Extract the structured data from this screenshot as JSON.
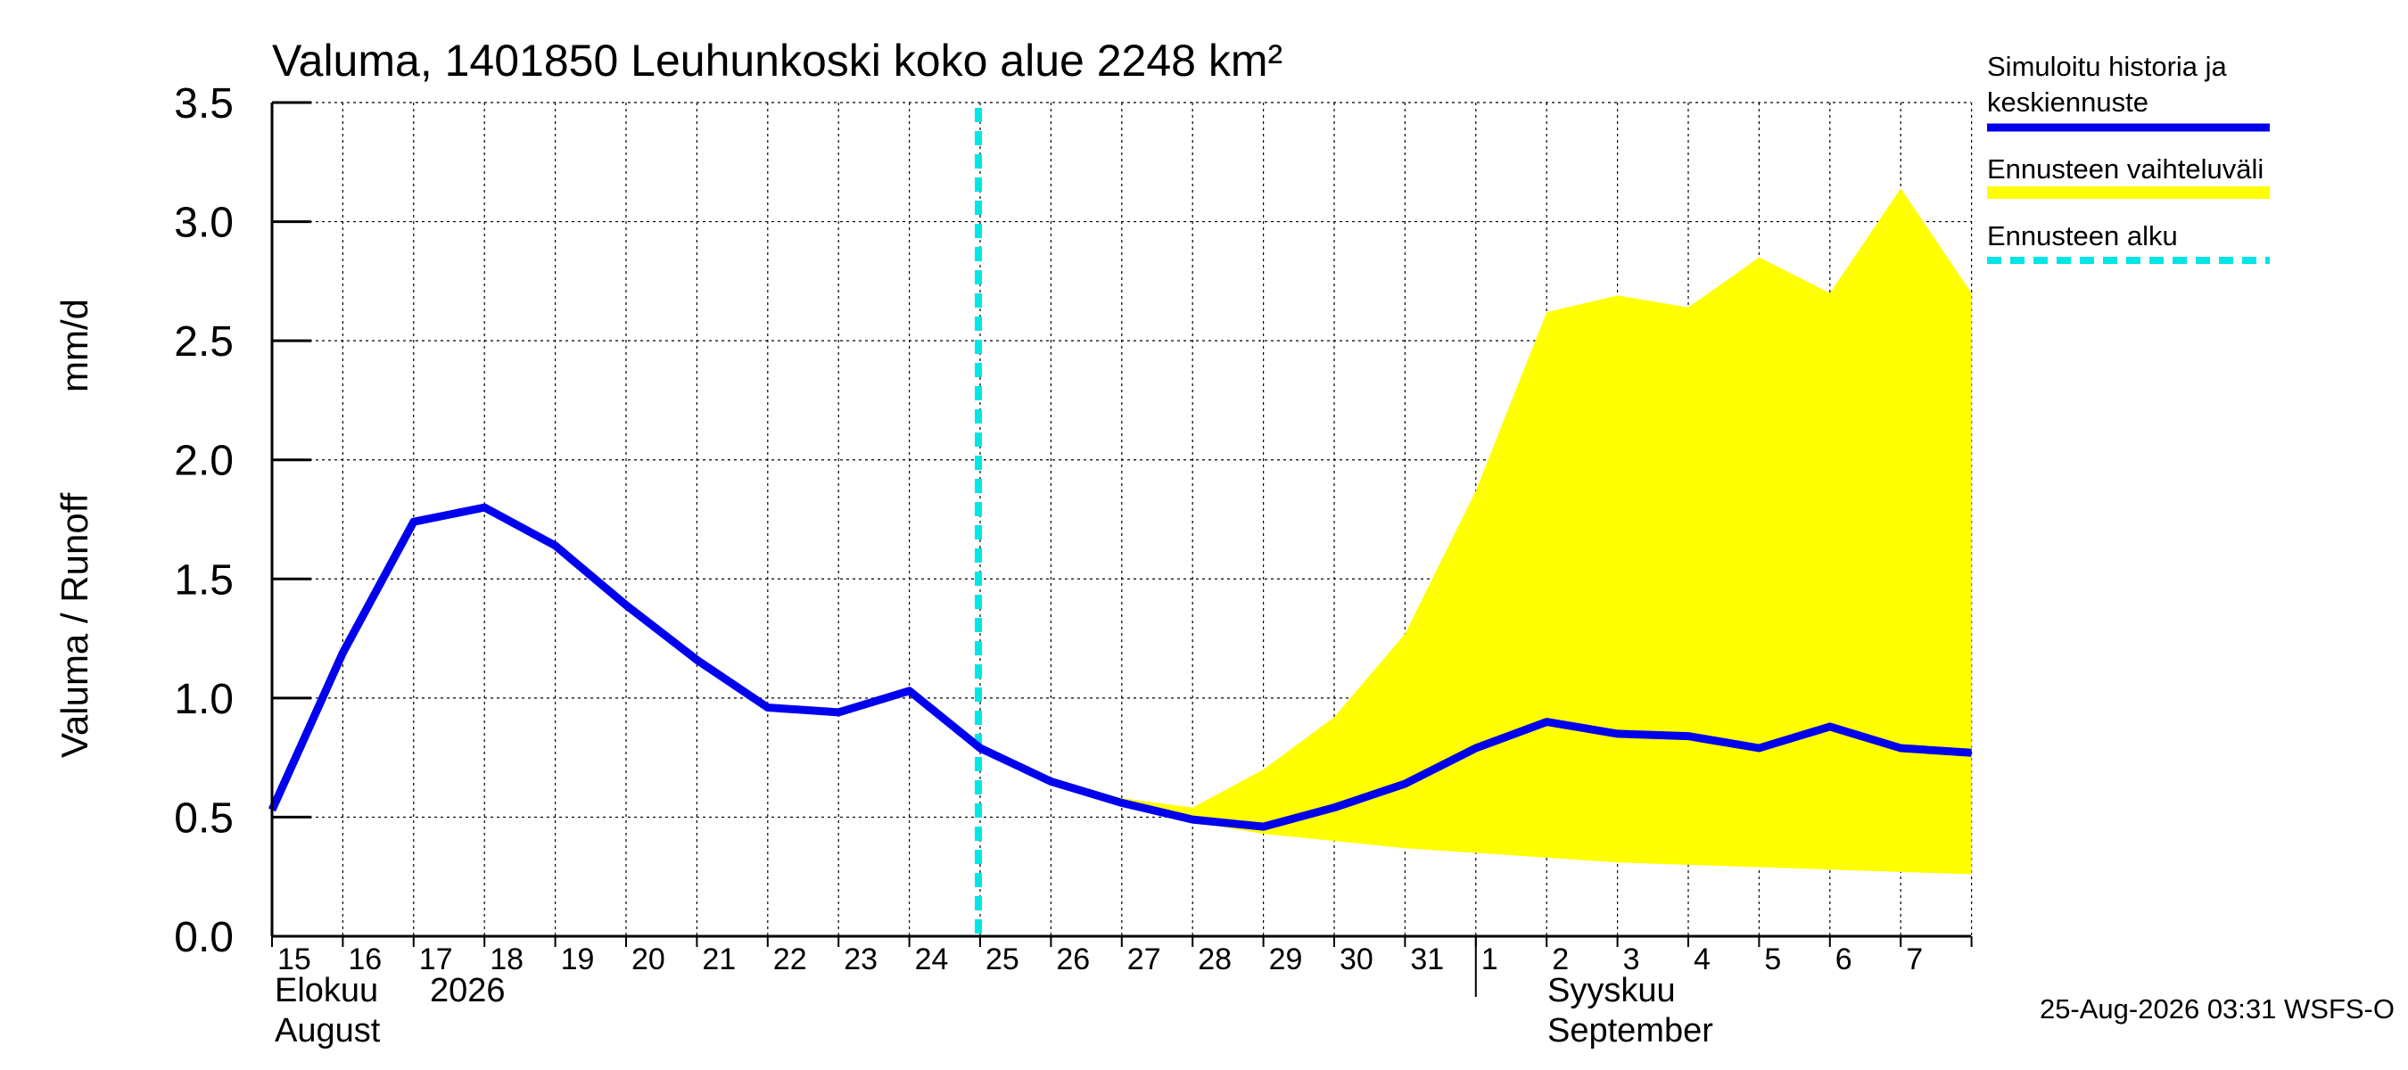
{
  "chart_data": {
    "type": "line",
    "title": "Valuma, 1401850 Leuhunkoski koko alue 2248 km²",
    "ylabel_left": "Valuma / Runoff",
    "ylabel_unit": "mm/d",
    "ylim": [
      0,
      3.5
    ],
    "yticks": [
      "0.0",
      "0.5",
      "1.0",
      "1.5",
      "2.0",
      "2.5",
      "3.0",
      "3.5"
    ],
    "grid": true,
    "x_day_labels": [
      "15",
      "16",
      "17",
      "18",
      "19",
      "20",
      "21",
      "22",
      "23",
      "24",
      "25",
      "26",
      "27",
      "28",
      "29",
      "30",
      "31",
      "1",
      "2",
      "3",
      "4",
      "5",
      "6",
      "7"
    ],
    "month_labels": {
      "aug_fi": "Elokuu",
      "year": "2026",
      "aug_en": "August",
      "sep_fi": "Syyskuu",
      "sep_en": "September"
    },
    "forecast_start_day_index": 10,
    "series": [
      {
        "name": "Simuloitu historia ja keskiennuste",
        "color": "#0000ee",
        "values": [
          0.53,
          1.19,
          1.74,
          1.8,
          1.64,
          1.39,
          1.16,
          0.96,
          0.94,
          1.03,
          0.79,
          0.65,
          0.56,
          0.49,
          0.46,
          0.54,
          0.64,
          0.79,
          0.9,
          0.85,
          0.84,
          0.79,
          0.88,
          0.79,
          0.77
        ]
      }
    ],
    "band": {
      "name": "Ennusteen vaihteluväli",
      "color": "#ffff00",
      "start_index": 10,
      "upper": [
        0.79,
        0.66,
        0.58,
        0.54,
        0.7,
        0.92,
        1.27,
        1.87,
        2.62,
        2.69,
        2.64,
        2.85,
        2.7,
        3.14,
        2.7
      ],
      "lower": [
        0.79,
        0.64,
        0.55,
        0.48,
        0.43,
        0.4,
        0.37,
        0.35,
        0.33,
        0.31,
        0.3,
        0.29,
        0.28,
        0.27,
        0.26
      ]
    },
    "forecast_line": {
      "name": "Ennusteen alku",
      "color": "#00e5e5"
    },
    "legend_placement": "right"
  },
  "legend": {
    "sim_line1": "Simuloitu historia ja",
    "sim_line2": "keskiennuste",
    "range": "Ennusteen vaihteluväli",
    "start": "Ennusteen alku"
  },
  "footer": "25-Aug-2026 03:31 WSFS-O"
}
